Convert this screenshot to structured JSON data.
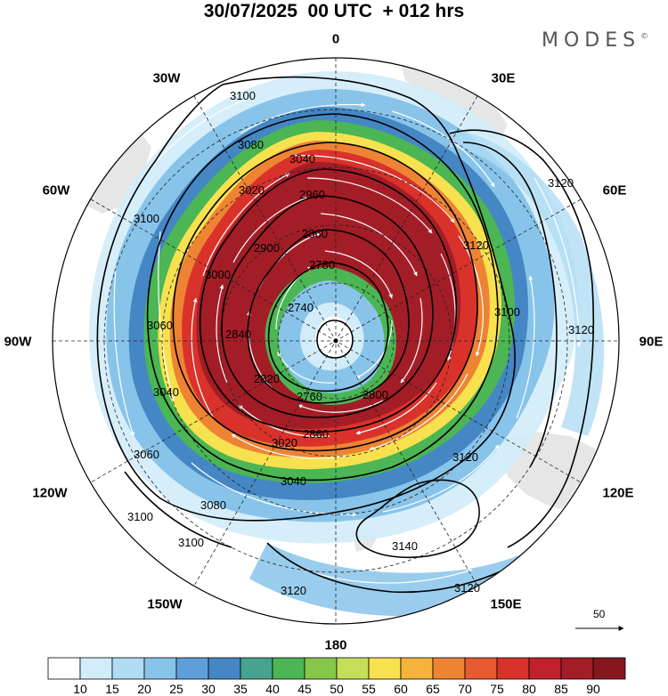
{
  "header": {
    "title": "30/07/2025  00 UTC  + 012 hrs",
    "brand": "MODES",
    "brand_mark": "©"
  },
  "longitude_labels": {
    "l0": "0",
    "l30e": "30E",
    "l60e": "60E",
    "l90e": "90E",
    "l120e": "120E",
    "l150e": "150E",
    "l180": "180",
    "l150w": "150W",
    "l120w": "120W",
    "l90w": "90W",
    "l60w": "60W",
    "l30w": "30W"
  },
  "contour_labels": [
    "3100",
    "3080",
    "3040",
    "3020",
    "2960",
    "2860",
    "2900",
    "3000",
    "3100",
    "2780",
    "2740",
    "2840",
    "3060",
    "2820",
    "2760",
    "2800",
    "3040",
    "3060",
    "2860",
    "3020",
    "3080",
    "3040",
    "3120",
    "3100",
    "3100",
    "3120",
    "3140",
    "3120",
    "3120",
    "3120",
    "3100",
    "3120"
  ],
  "reference_vector": {
    "label": "50"
  },
  "colorbar": {
    "labels": [
      "10",
      "15",
      "20",
      "25",
      "30",
      "35",
      "40",
      "45",
      "50",
      "55",
      "60",
      "65",
      "70",
      "75",
      "80",
      "85",
      "90"
    ],
    "colors": [
      "#ffffff",
      "#d2ecfa",
      "#b0dcf4",
      "#88c4ea",
      "#5e9fd9",
      "#4587c4",
      "#46a38e",
      "#4bb653",
      "#86c74a",
      "#c4de5a",
      "#f7e14f",
      "#f5b33c",
      "#ef8334",
      "#e85a2f",
      "#d9322b",
      "#c1202d",
      "#a31d27",
      "#86171e"
    ]
  },
  "colors": {
    "land": "#e6e6e6",
    "contour": "#000000",
    "wind_arrows": "#ffffff"
  }
}
